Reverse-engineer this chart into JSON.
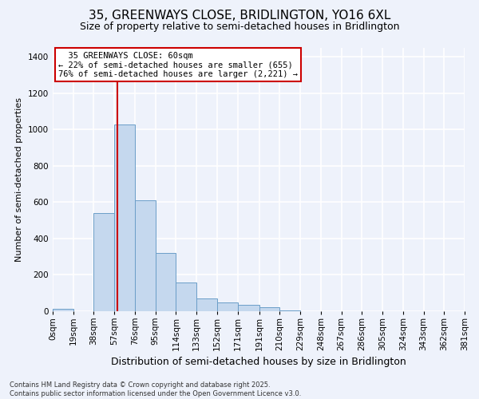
{
  "title": "35, GREENWAYS CLOSE, BRIDLINGTON, YO16 6XL",
  "subtitle": "Size of property relative to semi-detached houses in Bridlington",
  "xlabel": "Distribution of semi-detached houses by size in Bridlington",
  "ylabel": "Number of semi-detached properties",
  "footnote": "Contains HM Land Registry data © Crown copyright and database right 2025.\nContains public sector information licensed under the Open Government Licence v3.0.",
  "bar_labels": [
    "0sqm",
    "19sqm",
    "38sqm",
    "57sqm",
    "76sqm",
    "95sqm",
    "114sqm",
    "133sqm",
    "152sqm",
    "171sqm",
    "191sqm",
    "210sqm",
    "229sqm",
    "248sqm",
    "267sqm",
    "286sqm",
    "305sqm",
    "324sqm",
    "343sqm",
    "362sqm",
    "381sqm"
  ],
  "bin_edges": [
    0,
    19,
    38,
    57,
    76,
    95,
    114,
    133,
    152,
    171,
    191,
    210,
    229,
    248,
    267,
    286,
    305,
    324,
    343,
    362,
    381,
    400
  ],
  "bin_heights": [
    15,
    0,
    540,
    1030,
    610,
    320,
    160,
    70,
    50,
    35,
    20,
    5,
    0,
    0,
    0,
    0,
    0,
    0,
    0,
    0,
    0
  ],
  "property_size": 60,
  "property_label": "35 GREENWAYS CLOSE: 60sqm",
  "pct_smaller": 22,
  "pct_larger": 76,
  "n_smaller": 655,
  "n_larger": 2221,
  "bar_color": "#c5d8ee",
  "bar_edge_color": "#6b9ec8",
  "vline_color": "#cc0000",
  "annotation_box_color": "#ffffff",
  "annotation_box_edge": "#cc0000",
  "bg_color": "#eef2fb",
  "plot_bg_color": "#eef2fb",
  "grid_color": "#ffffff",
  "ylim": [
    0,
    1450
  ],
  "title_fontsize": 11,
  "subtitle_fontsize": 9,
  "xlabel_fontsize": 9,
  "ylabel_fontsize": 8,
  "annot_fontsize": 7.5,
  "tick_fontsize": 7.5
}
